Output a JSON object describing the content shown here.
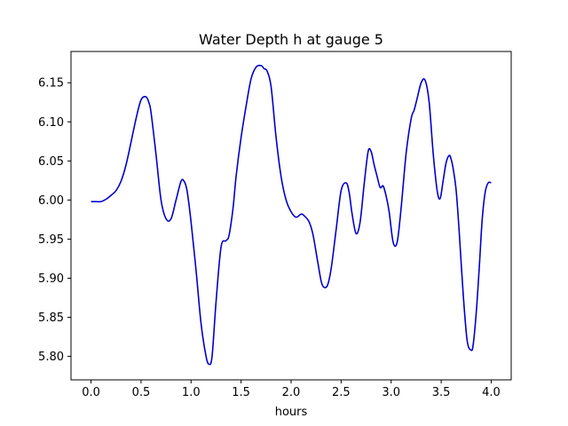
{
  "chart_data": {
    "type": "line",
    "title": "Water Depth h at gauge 5",
    "xlabel": "hours",
    "ylabel": "",
    "xlim": [
      -0.2,
      4.2
    ],
    "ylim": [
      5.77,
      6.19
    ],
    "xticks": [
      0.0,
      0.5,
      1.0,
      1.5,
      2.0,
      2.5,
      3.0,
      3.5,
      4.0
    ],
    "xtick_labels": [
      "0.0",
      "0.5",
      "1.0",
      "1.5",
      "2.0",
      "2.5",
      "3.0",
      "3.5",
      "4.0"
    ],
    "yticks": [
      5.8,
      5.85,
      5.9,
      5.95,
      6.0,
      6.05,
      6.1,
      6.15
    ],
    "ytick_labels": [
      "5.80",
      "5.85",
      "5.90",
      "5.95",
      "6.00",
      "6.05",
      "6.10",
      "6.15"
    ],
    "grid": false,
    "color": "#0000cc",
    "series": [
      {
        "x": [
          0.0,
          0.05,
          0.1,
          0.15,
          0.2,
          0.25,
          0.3,
          0.35,
          0.4,
          0.45,
          0.5,
          0.55,
          0.58,
          0.6,
          0.65,
          0.7,
          0.75,
          0.8,
          0.85,
          0.9,
          0.93,
          0.96,
          1.0,
          1.05,
          1.1,
          1.15,
          1.18,
          1.21,
          1.25,
          1.3,
          1.35,
          1.38,
          1.42,
          1.45,
          1.5,
          1.55,
          1.6,
          1.65,
          1.7,
          1.73,
          1.76,
          1.8,
          1.85,
          1.9,
          1.95,
          2.0,
          2.05,
          2.1,
          2.13,
          2.18,
          2.22,
          2.27,
          2.31,
          2.36,
          2.4,
          2.45,
          2.5,
          2.55,
          2.58,
          2.61,
          2.65,
          2.69,
          2.73,
          2.77,
          2.8,
          2.83,
          2.86,
          2.89,
          2.92,
          2.95,
          2.98,
          3.02,
          3.06,
          3.1,
          3.15,
          3.2,
          3.23,
          3.26,
          3.3,
          3.34,
          3.38,
          3.42,
          3.46,
          3.49,
          3.52,
          3.55,
          3.58,
          3.6,
          3.62,
          3.65,
          3.68,
          3.72,
          3.76,
          3.8,
          3.82,
          3.85,
          3.88,
          3.91,
          3.94,
          3.97,
          4.0
        ],
        "y": [
          5.998,
          5.998,
          5.998,
          6.001,
          6.006,
          6.012,
          6.024,
          6.045,
          6.074,
          6.104,
          6.128,
          6.132,
          6.124,
          6.112,
          6.058,
          6.0,
          5.976,
          5.976,
          6.0,
          6.024,
          6.024,
          6.012,
          5.972,
          5.91,
          5.842,
          5.8,
          5.79,
          5.8,
          5.87,
          5.94,
          5.948,
          5.955,
          5.99,
          6.03,
          6.08,
          6.12,
          6.155,
          6.17,
          6.172,
          6.168,
          6.165,
          6.145,
          6.08,
          6.03,
          6.0,
          5.985,
          5.978,
          5.982,
          5.98,
          5.972,
          5.955,
          5.918,
          5.892,
          5.89,
          5.912,
          5.962,
          6.012,
          6.022,
          6.01,
          5.982,
          5.957,
          5.972,
          6.02,
          6.062,
          6.062,
          6.045,
          6.03,
          6.016,
          6.018,
          6.005,
          5.985,
          5.946,
          5.946,
          5.99,
          6.06,
          6.104,
          6.115,
          6.13,
          6.15,
          6.153,
          6.125,
          6.06,
          6.012,
          6.002,
          6.025,
          6.048,
          6.057,
          6.052,
          6.04,
          6.012,
          5.96,
          5.88,
          5.82,
          5.808,
          5.815,
          5.855,
          5.912,
          5.975,
          6.01,
          6.022,
          6.022
        ]
      }
    ]
  }
}
